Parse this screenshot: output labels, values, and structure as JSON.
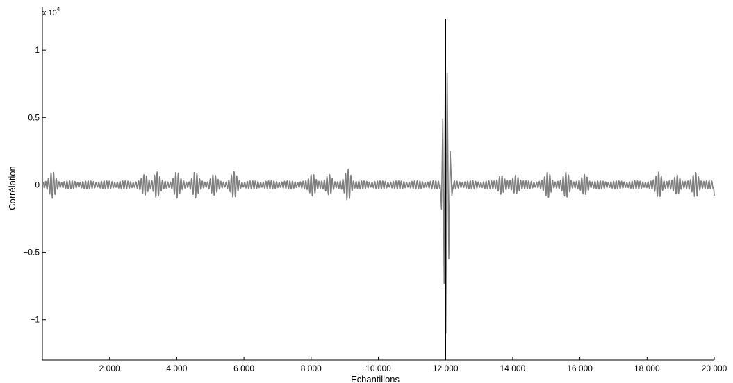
{
  "chart_data": {
    "type": "line",
    "title": "",
    "xlabel": "Echantillons",
    "ylabel": "Corrélation",
    "y_multiplier": {
      "base": "x 10",
      "exponent": "4"
    },
    "xlim": [
      0,
      20000
    ],
    "ylim": [
      -1.3,
      1.32
    ],
    "x_ticks": [
      2000,
      4000,
      6000,
      8000,
      10000,
      12000,
      14000,
      16000,
      18000,
      20000
    ],
    "x_tick_labels": [
      "2 000",
      "4 000",
      "6 000",
      "8 000",
      "10 000",
      "12 000",
      "14 000",
      "16 000",
      "18 000",
      "20 000"
    ],
    "y_ticks": [
      -1,
      -0.5,
      0,
      0.5,
      1
    ],
    "y_tick_labels": [
      "−1",
      "−0.5",
      "0",
      "0.5",
      "1"
    ],
    "grid": false,
    "legend": "none",
    "series": [
      {
        "color": "#808080",
        "kind": "correlation",
        "baseline_amplitude": 0.03,
        "peak": {
          "x": 12000,
          "extrema": [
            {
              "x": 11880,
              "y": -0.18
            },
            {
              "x": 11920,
              "y": 0.49
            },
            {
              "x": 11960,
              "y": -0.73
            },
            {
              "x": 12000,
              "y": 1.07
            },
            {
              "x": 12010,
              "y": -1.1
            },
            {
              "x": 12050,
              "y": 0.83
            },
            {
              "x": 12100,
              "y": -0.55
            },
            {
              "x": 12140,
              "y": 0.25
            },
            {
              "x": 12190,
              "y": -0.08
            }
          ]
        },
        "bursts": [
          {
            "x": 300,
            "amp": 0.07
          },
          {
            "x": 3050,
            "amp": 0.05
          },
          {
            "x": 3400,
            "amp": 0.07
          },
          {
            "x": 4000,
            "amp": 0.07
          },
          {
            "x": 4550,
            "amp": 0.07
          },
          {
            "x": 5100,
            "amp": 0.05
          },
          {
            "x": 5700,
            "amp": 0.07
          },
          {
            "x": 8050,
            "amp": 0.06
          },
          {
            "x": 8550,
            "amp": 0.05
          },
          {
            "x": 9100,
            "amp": 0.09
          },
          {
            "x": 13650,
            "amp": 0.05
          },
          {
            "x": 14100,
            "amp": 0.05
          },
          {
            "x": 15050,
            "amp": 0.07
          },
          {
            "x": 15600,
            "amp": 0.07
          },
          {
            "x": 16150,
            "amp": 0.05
          },
          {
            "x": 18350,
            "amp": 0.07
          },
          {
            "x": 18900,
            "amp": 0.05
          },
          {
            "x": 19450,
            "amp": 0.07
          }
        ],
        "end_value": -0.08
      }
    ],
    "markers": [
      {
        "x": 12000,
        "color": "#000000"
      }
    ]
  }
}
